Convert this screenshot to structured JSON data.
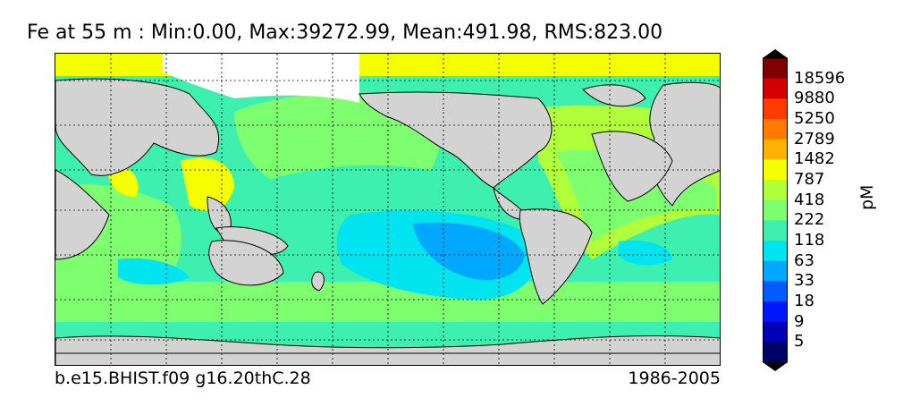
{
  "title": "Fe at 55 m : Min:0.00, Max:39272.99, Mean:491.98, RMS:823.00",
  "footer": {
    "case": "b.e15.BHIST.f09 g16.20thC.28",
    "period": "1986-2005"
  },
  "colorbar": {
    "unit": "pM",
    "labels": [
      "18596",
      "9880",
      "5250",
      "2789",
      "1482",
      "787",
      "418",
      "222",
      "118",
      "63",
      "33",
      "18",
      "9",
      "5"
    ],
    "colors": [
      "#800000",
      "#d40000",
      "#ff3c00",
      "#ff7a00",
      "#ffb000",
      "#f4ff00",
      "#b0ff3a",
      "#7dff70",
      "#3ef0b0",
      "#00e4f0",
      "#00a8ff",
      "#005cff",
      "#0018ff",
      "#0000b8",
      "#00006a"
    ]
  },
  "chart_data": {
    "type": "heatmap",
    "title": "Fe at 55 m : Min:0.00, Max:39272.99, Mean:491.98, RMS:823.00",
    "variable": "Fe",
    "depth": "55 m",
    "min": 0.0,
    "max": 39272.99,
    "mean": 491.98,
    "rms": 823.0,
    "units": "pM",
    "levels": [
      5,
      9,
      18,
      33,
      63,
      118,
      222,
      418,
      787,
      1482,
      2789,
      5250,
      9880,
      18596
    ],
    "extend": "both",
    "grid": true
  }
}
